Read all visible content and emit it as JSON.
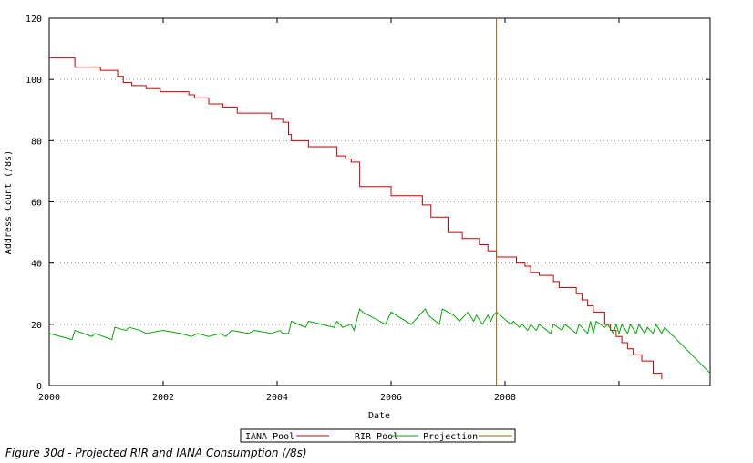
{
  "caption": "Figure 30d - Projected RIR and IANA Consumption (/8s)",
  "chart_data": {
    "type": "line",
    "title": "",
    "xlabel": "Date",
    "ylabel": "Address Count (/8s)",
    "xlim": [
      2000.0,
      2011.6
    ],
    "ylim": [
      0,
      120
    ],
    "xticks": [
      2000,
      2002,
      2004,
      2006,
      2008
    ],
    "xtick_labels": [
      "2000",
      "2002",
      "2004",
      "2006",
      "2008"
    ],
    "yticks": [
      0,
      20,
      40,
      60,
      80,
      100,
      120
    ],
    "ytick_labels": [
      "0",
      "20",
      "40",
      "60",
      "80",
      "100",
      "120"
    ],
    "grid": "horizontal-dotted",
    "legend_position": "bottom-center",
    "series": [
      {
        "name": "IANA Pool",
        "color": "#cc0000",
        "style": "step",
        "x": [
          2000.0,
          2000.45,
          2000.9,
          2001.2,
          2001.3,
          2001.45,
          2001.7,
          2001.95,
          2002.45,
          2002.55,
          2002.8,
          2003.05,
          2003.3,
          2003.9,
          2004.1,
          2004.2,
          2004.25,
          2004.55,
          2005.05,
          2005.2,
          2005.3,
          2005.45,
          2006.0,
          2006.55,
          2006.7,
          2007.0,
          2007.25,
          2007.55,
          2007.7,
          2007.85,
          2008.2,
          2008.35,
          2008.45,
          2008.6,
          2008.85,
          2008.95,
          2009.25,
          2009.35,
          2009.45,
          2009.55,
          2009.75,
          2009.85,
          2009.95,
          2010.05,
          2010.15,
          2010.25,
          2010.4,
          2010.6,
          2010.75
        ],
        "y": [
          107,
          104,
          103,
          101,
          99,
          98,
          97,
          96,
          95,
          94,
          92,
          91,
          89,
          87,
          86,
          82,
          80,
          78,
          75,
          74,
          73,
          65,
          62,
          59,
          55,
          50,
          48,
          46,
          44,
          42,
          40,
          39,
          37,
          36,
          34,
          32,
          30,
          28,
          26,
          24,
          20,
          18,
          16,
          14,
          12,
          10,
          8,
          4,
          2
        ]
      },
      {
        "name": "RIR Pool",
        "color": "#00aa00",
        "style": "line",
        "x": [
          2000.0,
          2000.4,
          2000.45,
          2000.75,
          2000.8,
          2001.1,
          2001.15,
          2001.35,
          2001.4,
          2001.6,
          2001.7,
          2002.0,
          2002.3,
          2002.5,
          2002.6,
          2002.8,
          2003.0,
          2003.1,
          2003.2,
          2003.5,
          2003.6,
          2003.9,
          2004.05,
          2004.1,
          2004.2,
          2004.25,
          2004.5,
          2004.55,
          2005.0,
          2005.05,
          2005.15,
          2005.3,
          2005.35,
          2005.45,
          2005.5,
          2005.9,
          2006.0,
          2006.35,
          2006.6,
          2006.65,
          2006.85,
          2006.9,
          2007.1,
          2007.2,
          2007.35,
          2007.45,
          2007.5,
          2007.6,
          2007.7,
          2007.75,
          2007.8,
          2007.85,
          2008.1,
          2008.15,
          2008.25,
          2008.3,
          2008.4,
          2008.45,
          2008.55,
          2008.6,
          2008.8,
          2008.85,
          2009.0,
          2009.05,
          2009.25,
          2009.3,
          2009.45,
          2009.5,
          2009.55,
          2009.6,
          2009.75,
          2009.8,
          2009.9,
          2009.95,
          2010.0,
          2010.05,
          2010.15,
          2010.2,
          2010.3,
          2010.35,
          2010.45,
          2010.5,
          2010.6,
          2010.65,
          2010.75,
          2010.8
        ],
        "y": [
          17,
          15,
          18,
          16,
          17,
          15,
          19,
          18,
          19,
          18,
          17,
          18,
          17,
          16,
          17,
          16,
          17,
          16,
          18,
          17,
          18,
          17,
          18,
          17,
          17,
          21,
          19,
          21,
          19,
          21,
          19,
          20,
          18,
          25,
          24,
          20,
          24,
          20,
          25,
          23,
          20,
          25,
          23,
          21,
          24,
          21,
          23,
          20,
          23,
          21,
          23,
          24,
          20,
          21,
          19,
          20,
          18,
          20,
          18,
          20,
          17,
          20,
          18,
          20,
          17,
          20,
          17,
          21,
          17,
          21,
          19,
          20,
          17,
          20,
          17,
          20,
          17,
          20,
          17,
          20,
          17,
          19,
          17,
          20,
          17,
          19
        ]
      },
      {
        "name": "Projection",
        "color": "#00aa00",
        "style": "line",
        "x": [
          2010.8,
          2011.6
        ],
        "y": [
          19,
          4
        ]
      },
      {
        "name": "",
        "color": "#996600",
        "style": "vline",
        "x": [
          2007.85,
          2007.85
        ],
        "y": [
          0,
          120
        ]
      }
    ],
    "legend": [
      {
        "label": "IANA Pool",
        "color": "#cc0000"
      },
      {
        "label": "RIR Pool",
        "color": "#00aa00"
      },
      {
        "label": "Projection",
        "color": "#996600"
      }
    ]
  }
}
